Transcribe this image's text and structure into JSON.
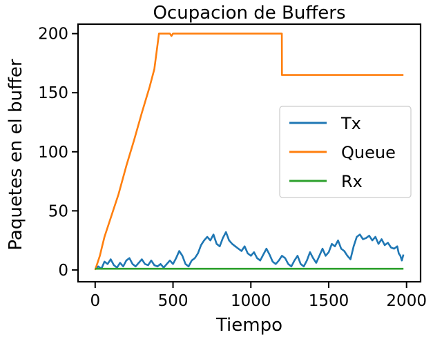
{
  "chart_data": {
    "type": "line",
    "title": "Ocupacion de Buffers",
    "xlabel": "Tiempo",
    "ylabel": "Paquetes en el buffer",
    "xlim": [
      -110,
      2090
    ],
    "ylim": [
      -10,
      208
    ],
    "xticks": [
      0,
      500,
      1000,
      1500,
      2000
    ],
    "yticks": [
      0,
      50,
      100,
      150,
      200
    ],
    "grid": false,
    "legend_position": "center-right",
    "series": [
      {
        "name": "Tx",
        "color": "#1f77b4",
        "points": [
          [
            0,
            1
          ],
          [
            20,
            3
          ],
          [
            40,
            1
          ],
          [
            60,
            7
          ],
          [
            80,
            5
          ],
          [
            100,
            9
          ],
          [
            120,
            4
          ],
          [
            140,
            2
          ],
          [
            160,
            6
          ],
          [
            180,
            3
          ],
          [
            200,
            8
          ],
          [
            220,
            10
          ],
          [
            240,
            5
          ],
          [
            260,
            3
          ],
          [
            280,
            6
          ],
          [
            300,
            9
          ],
          [
            320,
            5
          ],
          [
            340,
            4
          ],
          [
            360,
            8
          ],
          [
            380,
            4
          ],
          [
            400,
            3
          ],
          [
            420,
            5
          ],
          [
            440,
            2
          ],
          [
            460,
            5
          ],
          [
            480,
            8
          ],
          [
            500,
            5
          ],
          [
            520,
            10
          ],
          [
            540,
            16
          ],
          [
            560,
            12
          ],
          [
            580,
            5
          ],
          [
            600,
            3
          ],
          [
            620,
            8
          ],
          [
            640,
            10
          ],
          [
            660,
            14
          ],
          [
            680,
            21
          ],
          [
            700,
            25
          ],
          [
            720,
            28
          ],
          [
            740,
            25
          ],
          [
            760,
            30
          ],
          [
            780,
            22
          ],
          [
            800,
            20
          ],
          [
            820,
            27
          ],
          [
            840,
            32
          ],
          [
            860,
            25
          ],
          [
            880,
            22
          ],
          [
            900,
            20
          ],
          [
            920,
            18
          ],
          [
            940,
            16
          ],
          [
            960,
            20
          ],
          [
            980,
            14
          ],
          [
            1000,
            12
          ],
          [
            1020,
            15
          ],
          [
            1040,
            10
          ],
          [
            1060,
            8
          ],
          [
            1080,
            13
          ],
          [
            1100,
            18
          ],
          [
            1120,
            13
          ],
          [
            1140,
            7
          ],
          [
            1160,
            5
          ],
          [
            1180,
            8
          ],
          [
            1200,
            12
          ],
          [
            1220,
            10
          ],
          [
            1240,
            5
          ],
          [
            1260,
            3
          ],
          [
            1280,
            8
          ],
          [
            1300,
            12
          ],
          [
            1320,
            5
          ],
          [
            1340,
            3
          ],
          [
            1360,
            8
          ],
          [
            1380,
            15
          ],
          [
            1400,
            10
          ],
          [
            1420,
            6
          ],
          [
            1440,
            12
          ],
          [
            1460,
            18
          ],
          [
            1480,
            12
          ],
          [
            1500,
            15
          ],
          [
            1520,
            22
          ],
          [
            1540,
            20
          ],
          [
            1560,
            25
          ],
          [
            1580,
            18
          ],
          [
            1600,
            16
          ],
          [
            1620,
            12
          ],
          [
            1640,
            9
          ],
          [
            1660,
            20
          ],
          [
            1680,
            28
          ],
          [
            1700,
            30
          ],
          [
            1720,
            26
          ],
          [
            1740,
            27
          ],
          [
            1760,
            29
          ],
          [
            1780,
            25
          ],
          [
            1800,
            28
          ],
          [
            1820,
            22
          ],
          [
            1840,
            26
          ],
          [
            1860,
            21
          ],
          [
            1880,
            23
          ],
          [
            1900,
            19
          ],
          [
            1920,
            18
          ],
          [
            1940,
            20
          ],
          [
            1950,
            14
          ],
          [
            1960,
            12
          ],
          [
            1970,
            8
          ],
          [
            1980,
            13
          ]
        ]
      },
      {
        "name": "Queue",
        "color": "#ff7f0e",
        "points": [
          [
            0,
            0
          ],
          [
            30,
            12
          ],
          [
            45,
            20
          ],
          [
            60,
            28
          ],
          [
            100,
            44
          ],
          [
            150,
            64
          ],
          [
            200,
            88
          ],
          [
            250,
            110
          ],
          [
            300,
            133
          ],
          [
            350,
            155
          ],
          [
            380,
            170
          ],
          [
            410,
            200
          ],
          [
            480,
            200
          ],
          [
            490,
            198
          ],
          [
            500,
            200
          ],
          [
            1199,
            200
          ],
          [
            1200,
            165
          ],
          [
            1980,
            165
          ]
        ]
      },
      {
        "name": "Rx",
        "color": "#2ca02c",
        "points": [
          [
            0,
            1
          ],
          [
            1980,
            1
          ]
        ]
      }
    ]
  }
}
